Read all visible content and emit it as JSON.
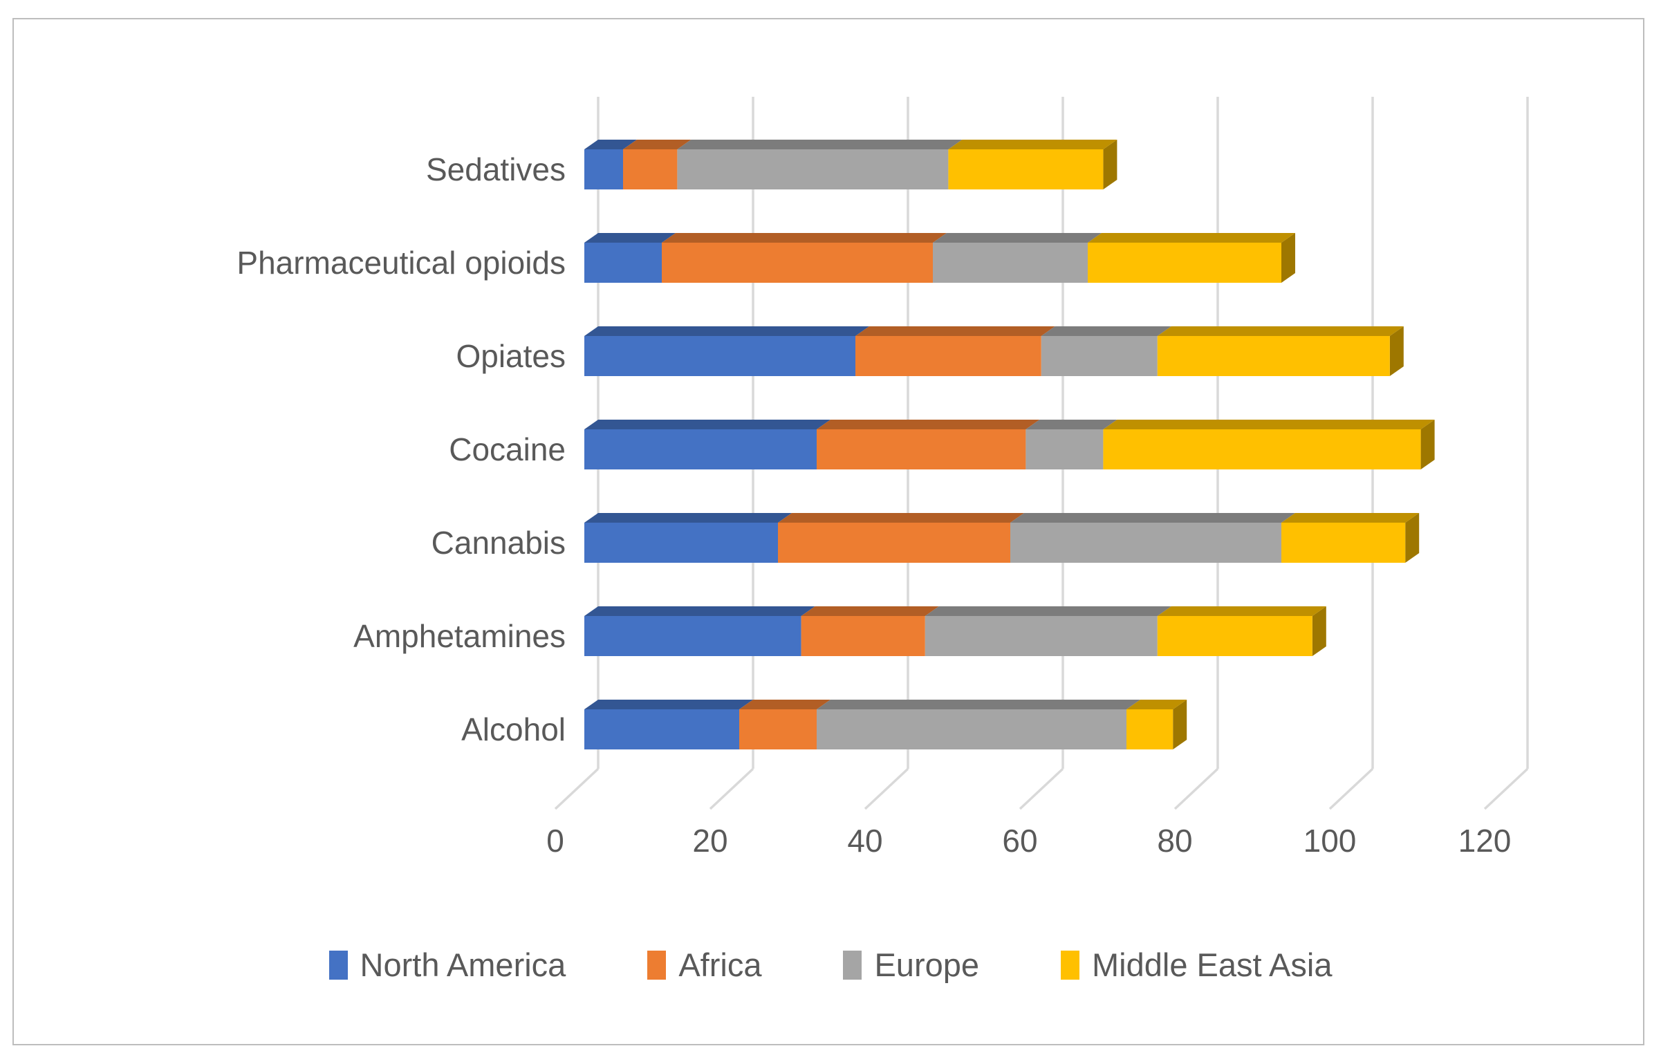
{
  "frame": {
    "border_color": "#bdbdbd"
  },
  "chart_data": {
    "type": "bar",
    "variant": "3d-stacked-horizontal",
    "title": "",
    "xlabel": "",
    "ylabel": "",
    "categories": [
      "Sedatives",
      "Pharmaceutical opioids",
      "Opiates",
      "Cocaine",
      "Cannabis",
      "Amphetamines",
      "Alcohol"
    ],
    "series": [
      {
        "name": "North America",
        "color": "#4472C4",
        "values": [
          5,
          10,
          35,
          30,
          25,
          28,
          20
        ]
      },
      {
        "name": "Africa",
        "color": "#ED7D31",
        "values": [
          7,
          35,
          24,
          27,
          30,
          16,
          10
        ]
      },
      {
        "name": "Europe",
        "color": "#A5A5A5",
        "values": [
          35,
          20,
          15,
          10,
          35,
          30,
          40
        ]
      },
      {
        "name": "Middle East Asia",
        "color": "#FFC000",
        "values": [
          20,
          25,
          30,
          41,
          16,
          20,
          6
        ]
      }
    ],
    "x_ticks": [
      0,
      20,
      40,
      60,
      80,
      100,
      120
    ],
    "xlim": [
      0,
      120
    ],
    "grid": true,
    "legend_position": "bottom",
    "gridline_color": "#D9D9D9",
    "axis_text_color": "#595959"
  }
}
